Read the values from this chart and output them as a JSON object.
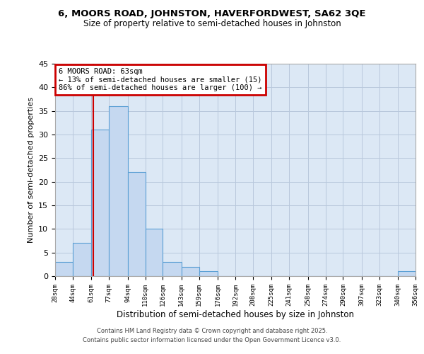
{
  "title1": "6, MOORS ROAD, JOHNSTON, HAVERFORDWEST, SA62 3QE",
  "title2": "Size of property relative to semi-detached houses in Johnston",
  "xlabel": "Distribution of semi-detached houses by size in Johnston",
  "ylabel": "Number of semi-detached properties",
  "bar_values": [
    3,
    7,
    31,
    36,
    22,
    10,
    3,
    2,
    1,
    0,
    0,
    0,
    0,
    0,
    0,
    0,
    0,
    0,
    0,
    1
  ],
  "bin_labels": [
    "28sqm",
    "44sqm",
    "61sqm",
    "77sqm",
    "94sqm",
    "110sqm",
    "126sqm",
    "143sqm",
    "159sqm",
    "176sqm",
    "192sqm",
    "208sqm",
    "225sqm",
    "241sqm",
    "258sqm",
    "274sqm",
    "290sqm",
    "307sqm",
    "323sqm",
    "340sqm",
    "356sqm"
  ],
  "bin_edges": [
    28,
    44,
    61,
    77,
    94,
    110,
    126,
    143,
    159,
    176,
    192,
    208,
    225,
    241,
    258,
    274,
    290,
    307,
    323,
    340,
    356
  ],
  "bar_color": "#c5d8f0",
  "bar_edge_color": "#5a9fd4",
  "property_value": 63,
  "vline_color": "#cc0000",
  "ylim": [
    0,
    45
  ],
  "yticks": [
    0,
    5,
    10,
    15,
    20,
    25,
    30,
    35,
    40,
    45
  ],
  "annotation_box_text": "6 MOORS ROAD: 63sqm\n← 13% of semi-detached houses are smaller (15)\n86% of semi-detached houses are larger (100) →",
  "annotation_box_color": "#cc0000",
  "background_color": "#ffffff",
  "axes_background": "#dce8f5",
  "grid_color": "#b8c8dc",
  "footer1": "Contains HM Land Registry data © Crown copyright and database right 2025.",
  "footer2": "Contains public sector information licensed under the Open Government Licence v3.0."
}
